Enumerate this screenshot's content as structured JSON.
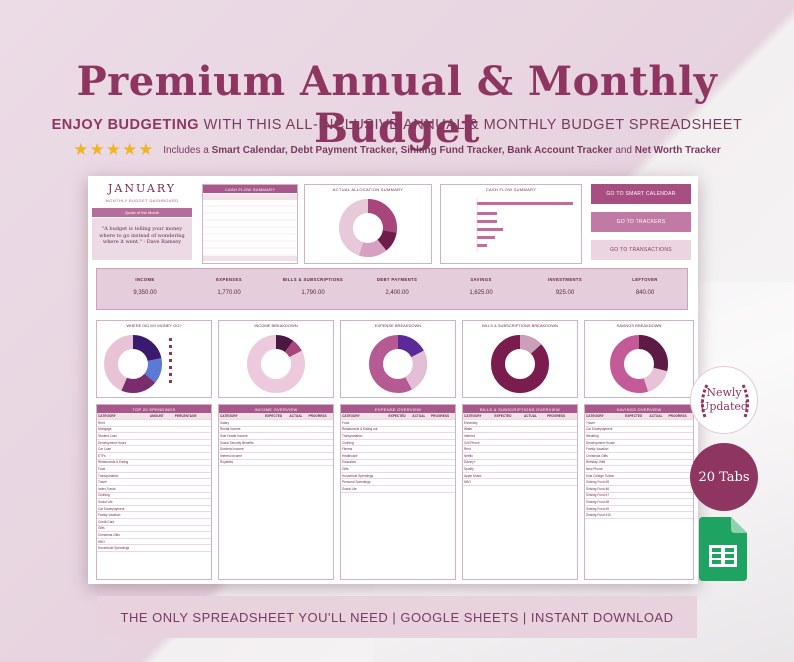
{
  "header": {
    "title": "Premium Annual & Monthly Budget",
    "subtitle_strong": "ENJOY BUDGETING",
    "subtitle_rest": "WITH THIS ALL-INCLUSIVE ANNUAL & MONTHLY BUDGET SPREADSHEET",
    "stars": "★★★★★",
    "features_prefix": "Includes a",
    "features_list": "Smart Calendar, Debt Payment Tracker, Sinking Fund Tracker, Bank Account Tracker",
    "features_and": "and",
    "features_last": "Net Worth Tracker"
  },
  "sheet": {
    "month": "JANUARY",
    "month_sub": "MONTHLY BUDGET DASHBOARD",
    "quote_header": "Quote of the Month",
    "quote": "\"A budget is telling your money where to go instead of wondering where it went.\" - Dave Ramsey",
    "cashflow_summary_title": "CASH FLOW SUMMARY",
    "allocation_title": "ACTUAL ALLOCATION SUMMARY",
    "cashflow_chart_title": "CASH FLOW SUMMARY",
    "goto": [
      "GO TO SMART CALENDAR",
      "GO TO TRACKERS",
      "GO TO TRANSACTIONS"
    ],
    "summary": [
      {
        "label": "INCOME",
        "value": "9,350.00"
      },
      {
        "label": "EXPENSES",
        "value": "1,770.00"
      },
      {
        "label": "BILLS & SUBSCRIPTIONS",
        "value": "1,790.00"
      },
      {
        "label": "DEBT PAYMENTS",
        "value": "2,400.00"
      },
      {
        "label": "SAVINGS",
        "value": "1,625.00"
      },
      {
        "label": "INVESTMENTS",
        "value": "925.00"
      },
      {
        "label": "LEFTOVER",
        "value": "840.00"
      }
    ],
    "charts": [
      "WHERE DID MY MONEY GO?",
      "INCOME BREAKDOWN",
      "EXPENSE BREAKDOWN",
      "BILLS & SUBSCRIPTIONS BREAKDOWN",
      "SAVINGS BREAKDOWN"
    ],
    "tables": [
      {
        "title": "TOP 20 SPENDINGS",
        "cols": [
          "CATEGORY",
          "AMOUNT",
          "PERCENTAGE"
        ],
        "rows": [
          "Rent",
          "Mortgage",
          "Student Loan",
          "Development Hours",
          "Car Loan",
          "ETFs",
          "Restaurants & Eating",
          "Food",
          "Transportation",
          "Travel",
          "Index Funds",
          "Clothing",
          "Social Life",
          "Car Downpayment",
          "Family Vacation",
          "Credit Card",
          "Gifts",
          "Christmas Gifts",
          "HBO",
          "Household Spendings"
        ]
      },
      {
        "title": "INCOME OVERVIEW",
        "cols": [
          "CATEGORY",
          "EXPECTED",
          "ACTUAL",
          "PROGRESS"
        ],
        "rows": [
          "Salary",
          "Rental Income",
          "Side Hustle Income",
          "Social Security Benefits",
          "Dividend Income",
          "Interest Income",
          "Royalties"
        ]
      },
      {
        "title": "EXPENSE OVERVIEW",
        "cols": [
          "CATEGORY",
          "EXPECTED",
          "ACTUAL",
          "PROGRESS"
        ],
        "rows": [
          "Food",
          "Restaurants & Eating out",
          "Transportation",
          "Clothing",
          "Fitness",
          "Healthcare",
          "Education",
          "Gifts",
          "Household Spendings",
          "Personal Spendings",
          "Social Life"
        ]
      },
      {
        "title": "BILLS & SUBSCRIPTIONS OVERVIEW",
        "cols": [
          "CATEGORY",
          "EXPECTED",
          "ACTUAL",
          "PROGRESS"
        ],
        "rows": [
          "Electricity",
          "Water",
          "Internet",
          "Cell Phone",
          "Rent",
          "Netflix",
          "Disney+",
          "Spotify",
          "Apple Music",
          "HBO"
        ]
      },
      {
        "title": "SAVINGS OVERVIEW",
        "cols": [
          "CATEGORY",
          "EXPECTED",
          "ACTUAL",
          "PROGRESS"
        ],
        "rows": [
          "Travel",
          "Car Downpayment",
          "Wedding",
          "Development House",
          "Family Vacation",
          "Christmas Gifts",
          "Birthday Gifts",
          "New Phone",
          "Kids College Tuition",
          "Sinking Fund #5",
          "Sinking Fund #6",
          "Sinking Fund #7",
          "Sinking Fund #8",
          "Sinking Fund #9",
          "Sinking Fund #10"
        ]
      }
    ]
  },
  "badges": {
    "newly_line1": "Newly",
    "newly_line2": "Updated",
    "tabs": "20 Tabs"
  },
  "footer": "THE ONLY SPREADSHEET YOU'LL NEED | GOOGLE SHEETS | INSTANT DOWNLOAD",
  "colors": {
    "plum": "#8e3561",
    "pink": "#a8588a",
    "blush": "#e6cddb",
    "sheets_green": "#1ea362"
  },
  "icons": [
    "star-icon",
    "google-sheets-icon",
    "laurel-icon"
  ]
}
